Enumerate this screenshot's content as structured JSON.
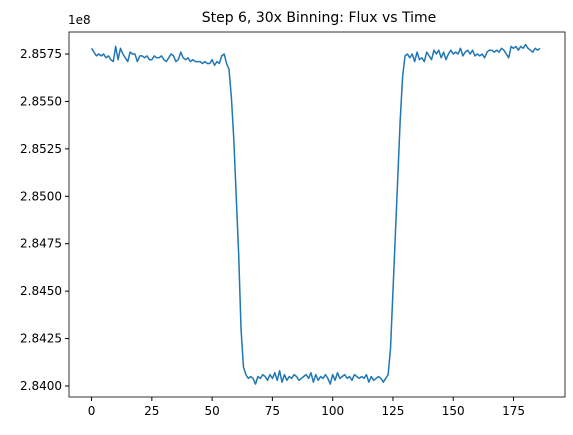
{
  "chart_data": {
    "type": "line",
    "title": "Step 6, 30x Binning: Flux vs Time",
    "y_offset_label": "1e8",
    "x": [
      0,
      1,
      2,
      3,
      4,
      5,
      6,
      7,
      8,
      9,
      10,
      11,
      12,
      13,
      14,
      15,
      16,
      17,
      18,
      19,
      20,
      21,
      22,
      23,
      24,
      25,
      26,
      27,
      28,
      29,
      30,
      31,
      32,
      33,
      34,
      35,
      36,
      37,
      38,
      39,
      40,
      41,
      42,
      43,
      44,
      45,
      46,
      47,
      48,
      49,
      50,
      51,
      52,
      53,
      54,
      55,
      56,
      57,
      58,
      59,
      60,
      61,
      62,
      63,
      64,
      65,
      66,
      67,
      68,
      69,
      70,
      71,
      72,
      73,
      74,
      75,
      76,
      77,
      78,
      79,
      80,
      81,
      82,
      83,
      84,
      85,
      86,
      87,
      88,
      89,
      90,
      91,
      92,
      93,
      94,
      95,
      96,
      97,
      98,
      99,
      100,
      101,
      102,
      103,
      104,
      105,
      106,
      107,
      108,
      109,
      110,
      111,
      112,
      113,
      114,
      115,
      116,
      117,
      118,
      119,
      120,
      121,
      122,
      123,
      124,
      125,
      126,
      127,
      128,
      129,
      130,
      131,
      132,
      133,
      134,
      135,
      136,
      137,
      138,
      139,
      140,
      141,
      142,
      143,
      144,
      145,
      146,
      147,
      148,
      149,
      150,
      151,
      152,
      153,
      154,
      155,
      156,
      157,
      158,
      159,
      160,
      161,
      162,
      163,
      164,
      165,
      166,
      167,
      168,
      169,
      170,
      171,
      172,
      173,
      174,
      175,
      176,
      177,
      178,
      179,
      180,
      181,
      182,
      183,
      184,
      185,
      186
    ],
    "series": [
      {
        "color": "#1f77b4",
        "values": [
          2.8578,
          2.8576,
          2.8574,
          2.8575,
          2.8574,
          2.8575,
          2.8573,
          2.8574,
          2.8572,
          2.8571,
          2.8579,
          2.8572,
          2.8578,
          2.8575,
          2.8573,
          2.8571,
          2.8576,
          2.8575,
          2.8575,
          2.8571,
          2.8574,
          2.8574,
          2.8573,
          2.8574,
          2.8572,
          2.8572,
          2.8574,
          2.8573,
          2.8573,
          2.8574,
          2.8572,
          2.8571,
          2.8573,
          2.8575,
          2.8574,
          2.8571,
          2.8572,
          2.8576,
          2.8573,
          2.8572,
          2.8573,
          2.8571,
          2.8572,
          2.8571,
          2.8571,
          2.8571,
          2.857,
          2.8571,
          2.857,
          2.857,
          2.8572,
          2.8569,
          2.8571,
          2.857,
          2.8574,
          2.8575,
          2.857,
          2.8567,
          2.8552,
          2.853,
          2.85,
          2.847,
          2.843,
          2.841,
          2.8406,
          2.8404,
          2.8405,
          2.8404,
          2.8401,
          2.8405,
          2.8404,
          2.8406,
          2.8405,
          2.8403,
          2.8406,
          2.8404,
          2.8407,
          2.8403,
          2.8408,
          2.8402,
          2.8406,
          2.8403,
          2.8405,
          2.8404,
          2.8406,
          2.8405,
          2.8403,
          2.8404,
          2.8405,
          2.8406,
          2.8404,
          2.8407,
          2.8402,
          2.8406,
          2.8403,
          2.8405,
          2.8404,
          2.8406,
          2.8404,
          2.8401,
          2.8406,
          2.8403,
          2.8407,
          2.8404,
          2.8405,
          2.8406,
          2.8404,
          2.8405,
          2.8403,
          2.8406,
          2.8405,
          2.8404,
          2.8405,
          2.8404,
          2.8406,
          2.8402,
          2.8405,
          2.8403,
          2.8404,
          2.8405,
          2.8404,
          2.8402,
          2.8404,
          2.8406,
          2.842,
          2.845,
          2.848,
          2.851,
          2.854,
          2.8563,
          2.8574,
          2.8575,
          2.8573,
          2.8575,
          2.8571,
          2.8576,
          2.8572,
          2.8573,
          2.8571,
          2.8576,
          2.8574,
          2.8572,
          2.8577,
          2.8575,
          2.8577,
          2.8573,
          2.8576,
          2.8572,
          2.8575,
          2.8577,
          2.8575,
          2.8576,
          2.8575,
          2.8578,
          2.8574,
          2.8576,
          2.8577,
          2.8575,
          2.8577,
          2.8574,
          2.8575,
          2.8574,
          2.8575,
          2.8573,
          2.8576,
          2.8577,
          2.8577,
          2.8576,
          2.8577,
          2.8576,
          2.8578,
          2.8577,
          2.8575,
          2.8573,
          2.8579,
          2.8578,
          2.8579,
          2.8577,
          2.8579,
          2.8578,
          2.858,
          2.8578,
          2.8577,
          2.8576,
          2.8578,
          2.8577,
          2.8578
        ]
      }
    ],
    "xlim": [
      -9.35,
      196.35
    ],
    "ylim": [
      2.83942,
      2.85866
    ],
    "xticks": [
      0,
      25,
      50,
      75,
      100,
      125,
      150,
      175
    ],
    "yticks": [
      {
        "value": 2.84,
        "label": "2.8400"
      },
      {
        "value": 2.8425,
        "label": "2.8425"
      },
      {
        "value": 2.845,
        "label": "2.8450"
      },
      {
        "value": 2.8475,
        "label": "2.8475"
      },
      {
        "value": 2.85,
        "label": "2.8500"
      },
      {
        "value": 2.8525,
        "label": "2.8525"
      },
      {
        "value": 2.855,
        "label": "2.8550"
      },
      {
        "value": 2.8575,
        "label": "2.8575"
      }
    ],
    "grid": false
  }
}
